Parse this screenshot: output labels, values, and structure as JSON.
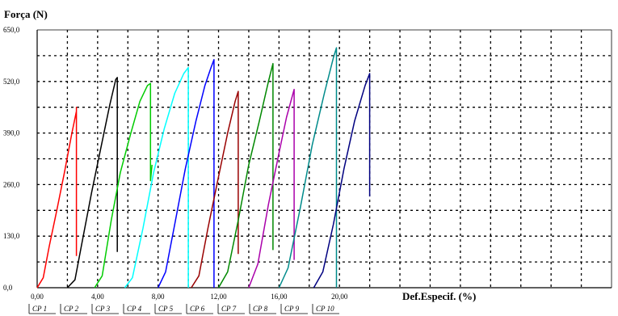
{
  "chart_data": {
    "type": "line",
    "ylabel": "Força (N)",
    "xlabel": "Def.Especif. (%)",
    "xlim": [
      0,
      38
    ],
    "ylim": [
      0,
      650
    ],
    "x_ticks": [
      0,
      4,
      8,
      12,
      16,
      20
    ],
    "x_tick_labels": [
      "0,00",
      "4,00",
      "8,00",
      "12,00",
      "16,00",
      "20,00"
    ],
    "y_ticks": [
      0,
      130,
      260,
      390,
      520,
      650
    ],
    "y_tick_labels": [
      "0,0",
      "130,0",
      "260,0",
      "390,0",
      "520,0",
      "650,0"
    ],
    "grid": true,
    "legend_position": "bottom",
    "series": [
      {
        "name": "CP 1",
        "color": "#ff0000",
        "x": [
          0.0,
          0.4,
          0.8,
          1.3,
          1.8,
          2.3,
          2.6,
          2.6,
          2.6
        ],
        "y": [
          0,
          25,
          105,
          195,
          290,
          390,
          445,
          455,
          80
        ]
      },
      {
        "name": "CP 2",
        "color": "#000000",
        "x": [
          2.0,
          2.5,
          3.0,
          3.6,
          4.2,
          4.8,
          5.2,
          5.3,
          5.3
        ],
        "y": [
          0,
          20,
          120,
          240,
          350,
          460,
          525,
          530,
          90
        ]
      },
      {
        "name": "CP 3",
        "color": "#00cc00",
        "x": [
          3.8,
          4.3,
          4.9,
          5.5,
          6.2,
          6.8,
          7.3,
          7.5,
          7.5,
          7.6
        ],
        "y": [
          0,
          30,
          170,
          290,
          390,
          470,
          510,
          515,
          270,
          310
        ]
      },
      {
        "name": "CP 4",
        "color": "#00ffff",
        "x": [
          5.8,
          6.3,
          7.0,
          7.7,
          8.4,
          9.1,
          9.7,
          10.0,
          10.0
        ],
        "y": [
          0,
          25,
          150,
          290,
          400,
          490,
          540,
          555,
          0
        ]
      },
      {
        "name": "CP 5",
        "color": "#0000ff",
        "x": [
          8.0,
          8.5,
          9.1,
          9.8,
          10.5,
          11.1,
          11.5,
          11.7,
          11.7
        ],
        "y": [
          0,
          40,
          160,
          300,
          420,
          510,
          555,
          575,
          0
        ]
      },
      {
        "name": "CP 6",
        "color": "#990000",
        "x": [
          10.2,
          10.7,
          11.3,
          12.0,
          12.6,
          13.1,
          13.3,
          13.3
        ],
        "y": [
          0,
          30,
          150,
          280,
          390,
          470,
          495,
          85
        ]
      },
      {
        "name": "CP 7",
        "color": "#008800",
        "x": [
          12.0,
          12.6,
          13.3,
          14.0,
          14.7,
          15.3,
          15.6,
          15.6
        ],
        "y": [
          0,
          40,
          170,
          310,
          420,
          520,
          565,
          95
        ]
      },
      {
        "name": "CP 8",
        "color": "#aa00aa",
        "x": [
          14.0,
          14.6,
          15.3,
          16.0,
          16.5,
          17.0,
          17.0
        ],
        "y": [
          0,
          60,
          210,
          340,
          430,
          500,
          70
        ]
      },
      {
        "name": "CP 9",
        "color": "#008b8b",
        "x": [
          16.0,
          16.6,
          17.4,
          18.2,
          19.0,
          19.6,
          19.8,
          19.8
        ],
        "y": [
          0,
          50,
          200,
          360,
          490,
          580,
          605,
          0
        ]
      },
      {
        "name": "CP 10",
        "color": "#000080",
        "x": [
          18.3,
          18.9,
          19.6,
          20.3,
          21.0,
          21.7,
          22.0,
          22.0
        ],
        "y": [
          0,
          40,
          160,
          300,
          420,
          510,
          540,
          230
        ]
      }
    ]
  }
}
